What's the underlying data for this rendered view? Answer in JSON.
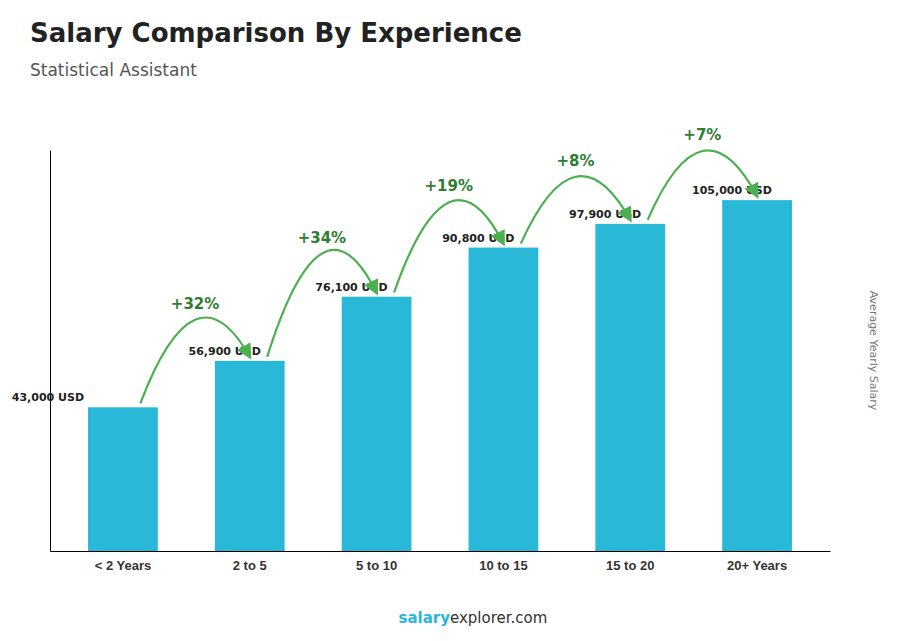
{
  "chart_data": {
    "type": "bar",
    "title": "Salary Comparison By Experience",
    "subtitle": "Statistical Assistant",
    "ylabel": "Average Yearly Salary",
    "categories": [
      "< 2 Years",
      "2 to 5",
      "5 to 10",
      "10 to 15",
      "15 to 20",
      "20+ Years"
    ],
    "values": [
      43000,
      56900,
      76100,
      90800,
      97900,
      105000
    ],
    "value_labels": [
      "43,000 USD",
      "56,900 USD",
      "76,100 USD",
      "90,800 USD",
      "97,900 USD",
      "105,000 USD"
    ],
    "data_labels": true,
    "annotations": [
      "+32%",
      "+34%",
      "+19%",
      "+8%",
      "+7%"
    ],
    "footer": [
      "salary",
      "explorer.com"
    ],
    "color": "#29b8d8",
    "ylim": [
      0,
      120000
    ],
    "tick_labels": "x",
    "grid": false
  }
}
